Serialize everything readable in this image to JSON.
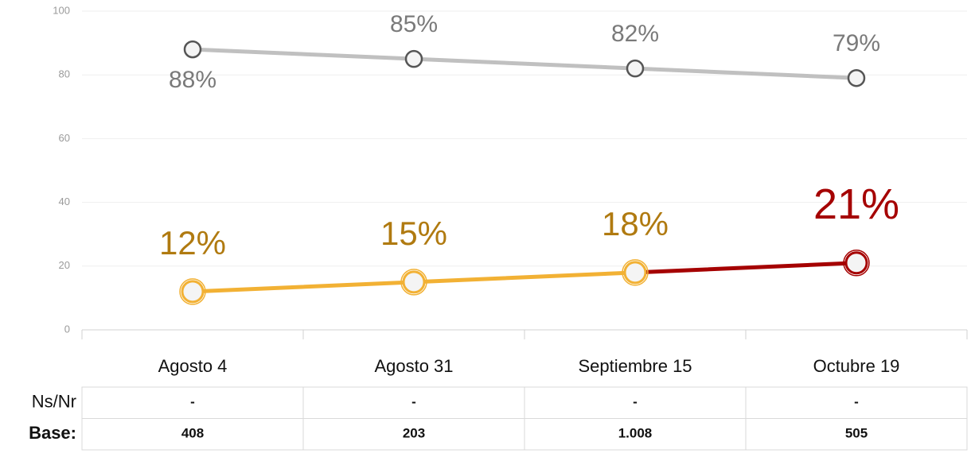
{
  "chart_data": {
    "type": "line",
    "categories": [
      "Agosto 4",
      "Agosto 31",
      "Septiembre 15",
      "Octubre 19"
    ],
    "series": [
      {
        "color": "#c0c0c0",
        "label_color": "#7a7a7a",
        "values": [
          88,
          85,
          82,
          79
        ],
        "value_labels": [
          "88%",
          "85%",
          "82%",
          "79%"
        ]
      },
      {
        "color": "#f2b134",
        "label_color": "#b07a10",
        "point_colors": [
          "#f2b134",
          "#f2b134",
          "#f2b134",
          "#a50000"
        ],
        "label_colors": [
          "#b07a10",
          "#b07a10",
          "#b07a10",
          "#a50000"
        ],
        "values": [
          12,
          15,
          18,
          21
        ],
        "value_labels": [
          "12%",
          "15%",
          "18%",
          "21%"
        ]
      }
    ],
    "ylim": [
      0,
      100
    ],
    "yticks": [
      0,
      20,
      40,
      60,
      80,
      100
    ],
    "grid": true
  },
  "table": {
    "rows": [
      {
        "label": "Ns/Nr",
        "cells": [
          "-",
          "-",
          "-",
          "-"
        ]
      },
      {
        "label": "Base:",
        "cells": [
          "408",
          "203",
          "1.008",
          "505"
        ]
      }
    ]
  }
}
